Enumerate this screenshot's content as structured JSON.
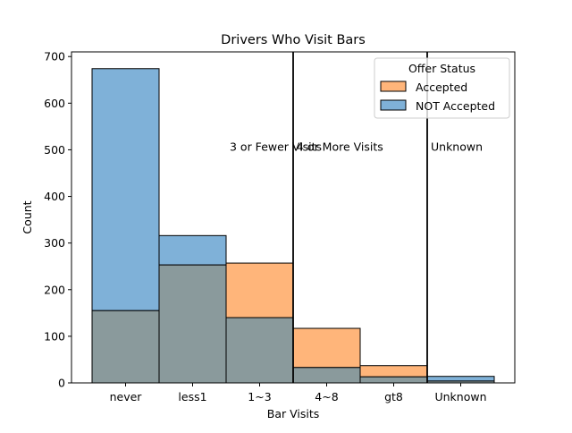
{
  "chart_data": {
    "type": "bar",
    "title": "Drivers Who Visit Bars",
    "xlabel": "Bar Visits",
    "ylabel": "Count",
    "categories": [
      "never",
      "less1",
      "1~3",
      "4~8",
      "gt8",
      "Unknown"
    ],
    "series": [
      {
        "name": "Accepted",
        "color": "#ffb57a",
        "values": [
          155,
          253,
          257,
          117,
          37,
          4
        ]
      },
      {
        "name": "NOT Accepted",
        "color": "#7fb1d8",
        "values": [
          674,
          316,
          140,
          33,
          13,
          14
        ]
      }
    ],
    "overlap_color": "#8a9a9c",
    "ylim": [
      0,
      710
    ],
    "yticks": [
      0,
      100,
      200,
      300,
      400,
      500,
      600,
      700
    ],
    "legend": {
      "title": "Offer Status",
      "placement": "top-right"
    },
    "annotations": [
      {
        "text": "3 or Fewer Visits",
        "x_after_category": "less1",
        "y": 500
      },
      {
        "text": "4 or More Visits",
        "x_after_category": "1~3",
        "y": 500
      },
      {
        "text": "Unknown",
        "x_after_category": "gt8",
        "y": 500
      }
    ],
    "separators_after_categories": [
      "1~3",
      "gt8"
    ],
    "grid": false
  }
}
